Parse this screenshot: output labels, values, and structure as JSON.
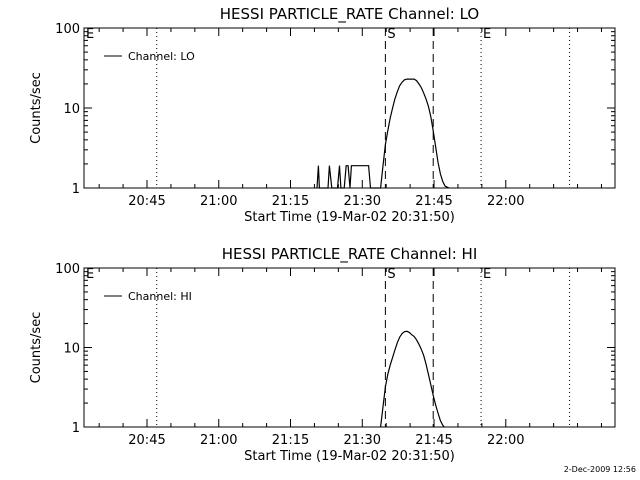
{
  "footer_timestamp": "2-Dec-2009 12:56",
  "chart_data": [
    {
      "type": "line",
      "title": "HESSI PARTICLE_RATE Channel: LO",
      "xlabel": "Start Time (19-Mar-02 20:31:50)",
      "ylabel": "Counts/sec",
      "yscale": "log",
      "ylim": [
        1,
        100
      ],
      "xlim": [
        0,
        111
      ],
      "x_units": "minutes since 20:31:50",
      "y_ticks": [
        "1",
        "10",
        "100"
      ],
      "x_ticks": [
        {
          "label": "20:45",
          "value": 13.17
        },
        {
          "label": "21:00",
          "value": 28.17
        },
        {
          "label": "21:15",
          "value": 43.17
        },
        {
          "label": "21:30",
          "value": 58.17
        },
        {
          "label": "21:45",
          "value": 73.17
        },
        {
          "label": "22:00",
          "value": 88.17
        }
      ],
      "legend": {
        "label": "Channel: LO",
        "position": "top-left"
      },
      "markers": [
        {
          "label": "E",
          "x": 0,
          "style": "dotted"
        },
        {
          "label": "",
          "x": 15.2,
          "style": "dotted"
        },
        {
          "label": "S",
          "x": 63.0,
          "style": "dashed"
        },
        {
          "label": "",
          "x": 73.0,
          "style": "dashed"
        },
        {
          "label": "E",
          "x": 83.0,
          "style": "dotted"
        },
        {
          "label": "",
          "x": 101.5,
          "style": "dotted"
        }
      ],
      "series": [
        {
          "name": "Channel: LO",
          "x": [
            48.7,
            49.0,
            49.2,
            49.5,
            50.2,
            50.8,
            51.0,
            51.3,
            51.8,
            52.6,
            53.0,
            53.4,
            53.7,
            54.0,
            54.4,
            54.8,
            55.2,
            55.6,
            55.9,
            56.2,
            56.6,
            56.9,
            57.2,
            57.6,
            58.0,
            58.4,
            58.8,
            59.5,
            59.9,
            60.3,
            60.6,
            61.0,
            61.5,
            62.0,
            62.5,
            63.0,
            63.5,
            64.0,
            64.5,
            65.0,
            65.5,
            66.0,
            66.5,
            67.0,
            67.5,
            68.0,
            68.5,
            69.0,
            69.5,
            70.0,
            70.5,
            71.0,
            71.5,
            72.0,
            72.5,
            73.0,
            73.5,
            74.0,
            74.5,
            75.0,
            75.5,
            76.0,
            76.3
          ],
          "y": [
            1,
            1.9,
            1,
            1,
            1,
            1,
            1,
            1.9,
            1,
            1,
            1,
            1.9,
            1,
            1,
            1,
            1.9,
            1.9,
            1,
            1.9,
            1.9,
            1.9,
            1.9,
            1.9,
            1.9,
            1.9,
            1.9,
            1.9,
            1.9,
            1,
            1,
            1,
            1,
            1,
            1,
            1.9,
            3.5,
            5.2,
            7.5,
            10,
            13,
            16,
            19,
            21,
            22.5,
            23,
            23,
            23,
            23,
            22,
            20,
            18,
            15.5,
            13,
            10.5,
            7.8,
            5.2,
            3.3,
            2.1,
            1.5,
            1.2,
            1.05,
            1.02,
            1
          ]
        }
      ]
    },
    {
      "type": "line",
      "title": "HESSI PARTICLE_RATE Channel: HI",
      "xlabel": "Start Time (19-Mar-02 20:31:50)",
      "ylabel": "Counts/sec",
      "yscale": "log",
      "ylim": [
        1,
        100
      ],
      "xlim": [
        0,
        111
      ],
      "x_units": "minutes since 20:31:50",
      "y_ticks": [
        "1",
        "10",
        "100"
      ],
      "x_ticks": [
        {
          "label": "20:45",
          "value": 13.17
        },
        {
          "label": "21:00",
          "value": 28.17
        },
        {
          "label": "21:15",
          "value": 43.17
        },
        {
          "label": "21:30",
          "value": 58.17
        },
        {
          "label": "21:45",
          "value": 73.17
        },
        {
          "label": "22:00",
          "value": 88.17
        }
      ],
      "legend": {
        "label": "Channel: HI",
        "position": "top-left"
      },
      "markers": [
        {
          "label": "E",
          "x": 0,
          "style": "dotted"
        },
        {
          "label": "",
          "x": 15.2,
          "style": "dotted"
        },
        {
          "label": "S",
          "x": 63.0,
          "style": "dashed"
        },
        {
          "label": "",
          "x": 73.0,
          "style": "dashed"
        },
        {
          "label": "E",
          "x": 83.0,
          "style": "dotted"
        },
        {
          "label": "",
          "x": 101.5,
          "style": "dotted"
        }
      ],
      "series": [
        {
          "name": "Channel: HI",
          "x": [
            62.0,
            62.5,
            63.0,
            63.5,
            64.0,
            64.5,
            65.0,
            65.5,
            66.0,
            66.5,
            67.0,
            67.5,
            68.0,
            68.5,
            69.0,
            69.5,
            70.0,
            70.5,
            71.0,
            71.5,
            72.0,
            72.5,
            73.0,
            73.5,
            74.0,
            74.5,
            75.0,
            75.3
          ],
          "y": [
            1,
            1.8,
            3.2,
            4.6,
            6,
            7.5,
            9.3,
            11.5,
            13.5,
            15,
            15.8,
            16,
            15.5,
            14.5,
            13.8,
            12.5,
            11,
            9.5,
            8,
            6.2,
            4.6,
            3.4,
            2.5,
            1.9,
            1.5,
            1.2,
            1.05,
            1
          ]
        }
      ]
    }
  ]
}
